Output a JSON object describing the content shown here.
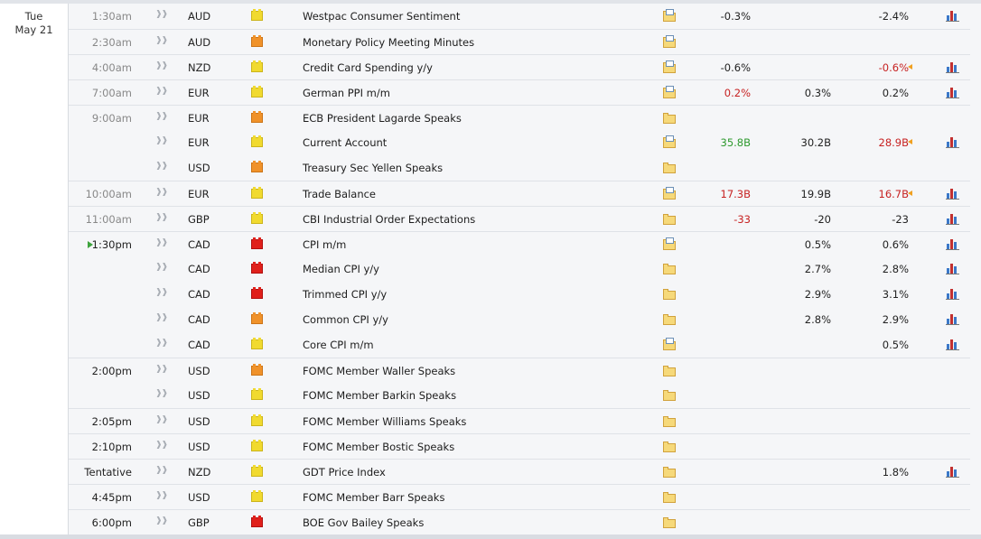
{
  "day": {
    "name": "Tue",
    "date": "May 21"
  },
  "events": [
    {
      "time": "1:30am",
      "cur": "AUD",
      "imp": "low",
      "name": "Westpac Consumer Sentiment",
      "folder": "doc",
      "actual": "-0.3%",
      "actual_color": "",
      "forecast": "",
      "previous": "-2.4%",
      "previous_color": "",
      "rev": false,
      "chart": true,
      "bt": false,
      "hov": false,
      "current_time": false
    },
    {
      "time": "2:30am",
      "cur": "AUD",
      "imp": "med",
      "name": "Monetary Policy Meeting Minutes",
      "folder": "doc",
      "actual": "",
      "actual_color": "",
      "forecast": "",
      "previous": "",
      "previous_color": "",
      "rev": false,
      "chart": false,
      "bt": true,
      "hov": false,
      "current_time": false
    },
    {
      "time": "4:00am",
      "cur": "NZD",
      "imp": "low",
      "name": "Credit Card Spending y/y",
      "folder": "doc",
      "actual": "-0.6%",
      "actual_color": "",
      "forecast": "",
      "previous": "-0.6%",
      "previous_color": "red",
      "rev": true,
      "chart": true,
      "bt": true,
      "hov": false,
      "current_time": false
    },
    {
      "time": "7:00am",
      "cur": "EUR",
      "imp": "low",
      "name": "German PPI m/m",
      "folder": "doc",
      "actual": "0.2%",
      "actual_color": "red",
      "forecast": "0.3%",
      "previous": "0.2%",
      "previous_color": "",
      "rev": false,
      "chart": true,
      "bt": true,
      "hov": false,
      "current_time": false
    },
    {
      "time": "9:00am",
      "cur": "EUR",
      "imp": "med",
      "name": "ECB President Lagarde Speaks",
      "folder": "plain",
      "actual": "",
      "actual_color": "",
      "forecast": "",
      "previous": "",
      "previous_color": "",
      "rev": false,
      "chart": false,
      "bt": true,
      "hov": false,
      "current_time": false
    },
    {
      "time": "",
      "cur": "EUR",
      "imp": "low",
      "name": "Current Account",
      "folder": "doc",
      "actual": "35.8B",
      "actual_color": "green",
      "forecast": "30.2B",
      "previous": "28.9B",
      "previous_color": "red",
      "rev": true,
      "chart": true,
      "bt": false,
      "hov": false,
      "current_time": false
    },
    {
      "time": "",
      "cur": "USD",
      "imp": "med",
      "name": "Treasury Sec Yellen Speaks",
      "folder": "plain",
      "actual": "",
      "actual_color": "",
      "forecast": "",
      "previous": "",
      "previous_color": "",
      "rev": false,
      "chart": false,
      "bt": false,
      "hov": false,
      "current_time": false
    },
    {
      "time": "10:00am",
      "cur": "EUR",
      "imp": "low",
      "name": "Trade Balance",
      "folder": "doc",
      "actual": "17.3B",
      "actual_color": "red",
      "forecast": "19.9B",
      "previous": "16.7B",
      "previous_color": "red",
      "rev": true,
      "chart": true,
      "bt": true,
      "hov": false,
      "current_time": false
    },
    {
      "time": "11:00am",
      "cur": "GBP",
      "imp": "low",
      "name": "CBI Industrial Order Expectations",
      "folder": "plain",
      "actual": "-33",
      "actual_color": "red",
      "forecast": "-20",
      "previous": "-23",
      "previous_color": "",
      "rev": false,
      "chart": true,
      "bt": true,
      "hov": false,
      "current_time": false
    },
    {
      "time": "1:30pm",
      "cur": "CAD",
      "imp": "high",
      "name": "CPI m/m",
      "folder": "doc",
      "actual": "",
      "actual_color": "",
      "forecast": "0.5%",
      "previous": "0.6%",
      "previous_color": "",
      "rev": false,
      "chart": true,
      "bt": true,
      "hov": false,
      "current_time": true
    },
    {
      "time": "",
      "cur": "CAD",
      "imp": "high",
      "name": "Median CPI y/y",
      "folder": "plain",
      "actual": "",
      "actual_color": "",
      "forecast": "2.7%",
      "previous": "2.8%",
      "previous_color": "",
      "rev": false,
      "chart": true,
      "bt": false,
      "hov": false,
      "current_time": false
    },
    {
      "time": "",
      "cur": "CAD",
      "imp": "high",
      "name": "Trimmed CPI y/y",
      "folder": "plain",
      "actual": "",
      "actual_color": "",
      "forecast": "2.9%",
      "previous": "3.1%",
      "previous_color": "",
      "rev": false,
      "chart": true,
      "bt": false,
      "hov": false,
      "current_time": false
    },
    {
      "time": "",
      "cur": "CAD",
      "imp": "med",
      "name": "Common CPI y/y",
      "folder": "plain",
      "actual": "",
      "actual_color": "",
      "forecast": "2.8%",
      "previous": "2.9%",
      "previous_color": "",
      "rev": false,
      "chart": true,
      "bt": false,
      "hov": false,
      "current_time": false
    },
    {
      "time": "",
      "cur": "CAD",
      "imp": "low",
      "name": "Core CPI m/m",
      "folder": "doc",
      "actual": "",
      "actual_color": "",
      "forecast": "",
      "previous": "0.5%",
      "previous_color": "",
      "rev": false,
      "chart": true,
      "bt": false,
      "hov": false,
      "current_time": false
    },
    {
      "time": "2:00pm",
      "cur": "USD",
      "imp": "med",
      "name": "FOMC Member Waller Speaks",
      "folder": "plain",
      "actual": "",
      "actual_color": "",
      "forecast": "",
      "previous": "",
      "previous_color": "",
      "rev": false,
      "chart": false,
      "bt": true,
      "hov": false,
      "current_time": true
    },
    {
      "time": "",
      "cur": "USD",
      "imp": "low",
      "name": "FOMC Member Barkin Speaks",
      "folder": "plain",
      "actual": "",
      "actual_color": "",
      "forecast": "",
      "previous": "",
      "previous_color": "",
      "rev": false,
      "chart": false,
      "bt": false,
      "hov": false,
      "current_time": false
    },
    {
      "time": "2:05pm",
      "cur": "USD",
      "imp": "low",
      "name": "FOMC Member Williams Speaks",
      "folder": "plain",
      "actual": "",
      "actual_color": "",
      "forecast": "",
      "previous": "",
      "previous_color": "",
      "rev": false,
      "chart": false,
      "bt": true,
      "hov": false,
      "current_time": true
    },
    {
      "time": "2:10pm",
      "cur": "USD",
      "imp": "low",
      "name": "FOMC Member Bostic Speaks",
      "folder": "plain",
      "actual": "",
      "actual_color": "",
      "forecast": "",
      "previous": "",
      "previous_color": "",
      "rev": false,
      "chart": false,
      "bt": true,
      "hov": false,
      "current_time": true
    },
    {
      "time": "Tentative",
      "cur": "NZD",
      "imp": "low",
      "name": "GDT Price Index",
      "folder": "plain",
      "actual": "",
      "actual_color": "",
      "forecast": "",
      "previous": "1.8%",
      "previous_color": "",
      "rev": false,
      "chart": true,
      "bt": true,
      "hov": false,
      "current_time": true
    },
    {
      "time": "4:45pm",
      "cur": "USD",
      "imp": "low",
      "name": "FOMC Member Barr Speaks",
      "folder": "plain",
      "actual": "",
      "actual_color": "",
      "forecast": "",
      "previous": "",
      "previous_color": "",
      "rev": false,
      "chart": false,
      "bt": true,
      "hov": false,
      "current_time": true
    },
    {
      "time": "6:00pm",
      "cur": "GBP",
      "imp": "high",
      "name": "BOE Gov Bailey Speaks",
      "folder": "plain",
      "actual": "",
      "actual_color": "",
      "forecast": "",
      "previous": "",
      "previous_color": "",
      "rev": false,
      "chart": false,
      "bt": true,
      "hov": false,
      "current_time": true
    }
  ],
  "colors": {
    "low": "#f1da2f",
    "med": "#f0922a",
    "high": "#e0201b",
    "better": "#2f9a2f",
    "worse": "#c72222"
  }
}
